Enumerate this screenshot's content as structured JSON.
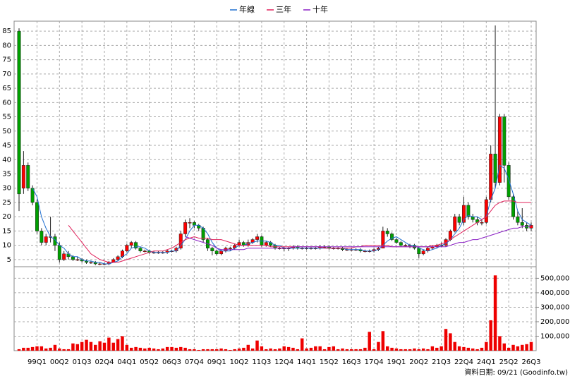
{
  "chart_data": {
    "type": "candlestick",
    "up_color": "#ff0000",
    "down_color": "#00a000",
    "grid": true,
    "categories": [
      null,
      null,
      null,
      null,
      "99Q1",
      null,
      null,
      null,
      null,
      "00Q2",
      null,
      null,
      null,
      null,
      "01Q3",
      null,
      null,
      null,
      null,
      "02Q4",
      null,
      null,
      null,
      null,
      "04Q1",
      null,
      null,
      null,
      null,
      "05Q2",
      null,
      null,
      null,
      null,
      "06Q3",
      null,
      null,
      null,
      null,
      "07Q4",
      null,
      null,
      null,
      null,
      "09Q1",
      null,
      null,
      null,
      null,
      "10Q2",
      null,
      null,
      null,
      null,
      "11Q3",
      null,
      null,
      null,
      null,
      "12Q4",
      null,
      null,
      null,
      null,
      "14Q1",
      null,
      null,
      null,
      null,
      "15Q2",
      null,
      null,
      null,
      null,
      "16Q3",
      null,
      null,
      null,
      null,
      "17Q4",
      null,
      null,
      null,
      null,
      "19Q1",
      null,
      null,
      null,
      null,
      "20Q2",
      null,
      null,
      null,
      null,
      "21Q3",
      null,
      null,
      null,
      null,
      "22Q4",
      null,
      null,
      null,
      null,
      "24Q1",
      null,
      null,
      null,
      null,
      "25Q2",
      null,
      null,
      null,
      null,
      "26Q3"
    ],
    "ylim": [
      2.5,
      88.5
    ],
    "yticks": [
      5,
      10,
      15,
      20,
      25,
      30,
      35,
      40,
      45,
      50,
      55,
      60,
      65,
      70,
      75,
      80,
      85
    ],
    "ohlc": [
      [
        85,
        86,
        22,
        28
      ],
      [
        30,
        43,
        28,
        38
      ],
      [
        38,
        39,
        29,
        30
      ],
      [
        30,
        31,
        24,
        25
      ],
      [
        25,
        26,
        14,
        15
      ],
      [
        15,
        16,
        10,
        11
      ],
      [
        11,
        14,
        10,
        13
      ],
      [
        13,
        20,
        11,
        13
      ],
      [
        13,
        14,
        8,
        10
      ],
      [
        10,
        11,
        4,
        5
      ],
      [
        5,
        8,
        4.5,
        7
      ],
      [
        7,
        8,
        5,
        6
      ],
      [
        6,
        6.5,
        4.5,
        5
      ],
      [
        5,
        6,
        4.5,
        5
      ],
      [
        5,
        5.5,
        4,
        4.5
      ],
      [
        4.5,
        5,
        3.5,
        4
      ],
      [
        4,
        4.5,
        3.5,
        4
      ],
      [
        4,
        4.5,
        3,
        3.5
      ],
      [
        3.5,
        4,
        3,
        3.5
      ],
      [
        3.5,
        4,
        3,
        3.5
      ],
      [
        3.5,
        4.5,
        3,
        4
      ],
      [
        4,
        5.5,
        4,
        5
      ],
      [
        5,
        6.5,
        4.5,
        6
      ],
      [
        6,
        8.5,
        5.5,
        8
      ],
      [
        8,
        10.5,
        7.5,
        10
      ],
      [
        10,
        11.5,
        9,
        11
      ],
      [
        11,
        11.5,
        8.5,
        9
      ],
      [
        9,
        9.5,
        7.5,
        8
      ],
      [
        8,
        8.5,
        7.5,
        8
      ],
      [
        8,
        8.5,
        7,
        7.5
      ],
      [
        7.5,
        8,
        7,
        7.5
      ],
      [
        7.5,
        8,
        7,
        7.5
      ],
      [
        7.5,
        8,
        7,
        7.5
      ],
      [
        7.5,
        8.5,
        7,
        8
      ],
      [
        8,
        8.5,
        7.5,
        8
      ],
      [
        8,
        9.5,
        7.5,
        9
      ],
      [
        9,
        15,
        8.5,
        14
      ],
      [
        14,
        19,
        13,
        18
      ],
      [
        18,
        19.5,
        16,
        18
      ],
      [
        18,
        18.5,
        16,
        17
      ],
      [
        17,
        17.5,
        15,
        16
      ],
      [
        16,
        16.5,
        11,
        12
      ],
      [
        12,
        12.5,
        8,
        9
      ],
      [
        9,
        9.5,
        6.5,
        8
      ],
      [
        8,
        8.5,
        6.5,
        7
      ],
      [
        7,
        8.5,
        6.5,
        8
      ],
      [
        8,
        9.5,
        7.5,
        9
      ],
      [
        9,
        9.5,
        8,
        9
      ],
      [
        9,
        10.5,
        8.5,
        10
      ],
      [
        10,
        12,
        9.5,
        11
      ],
      [
        11,
        11.5,
        9.5,
        10
      ],
      [
        10,
        12,
        9.5,
        11
      ],
      [
        11,
        12.5,
        10.5,
        12
      ],
      [
        12,
        14,
        11,
        13
      ],
      [
        13,
        13.5,
        9.5,
        10
      ],
      [
        10,
        11.5,
        9.5,
        11
      ],
      [
        11,
        11.5,
        9.5,
        10
      ],
      [
        10,
        10.5,
        8.5,
        9
      ],
      [
        9,
        9.5,
        8.5,
        9
      ],
      [
        9,
        9.5,
        8,
        9
      ],
      [
        9,
        9.5,
        8,
        9
      ],
      [
        9,
        10,
        8.5,
        9.5
      ],
      [
        9.5,
        10,
        8.5,
        9
      ],
      [
        9,
        9.5,
        8.5,
        9
      ],
      [
        9,
        9.5,
        8.5,
        9
      ],
      [
        9,
        9.5,
        8.5,
        9
      ],
      [
        9,
        9.5,
        8.5,
        9
      ],
      [
        9,
        10,
        8.5,
        9.5
      ],
      [
        9.5,
        10,
        9,
        9.5
      ],
      [
        9.5,
        10,
        8.5,
        9
      ],
      [
        9,
        9.5,
        8.5,
        9
      ],
      [
        9,
        9.5,
        8.5,
        9
      ],
      [
        9,
        9.5,
        8,
        8.5
      ],
      [
        8.5,
        9,
        8,
        8.5
      ],
      [
        8.5,
        9,
        8,
        8.5
      ],
      [
        8.5,
        9,
        8,
        8.5
      ],
      [
        8.5,
        9,
        7.5,
        8
      ],
      [
        8,
        8.5,
        7.5,
        8
      ],
      [
        8,
        8.5,
        7.5,
        8
      ],
      [
        8,
        9,
        7.5,
        8.5
      ],
      [
        8.5,
        9.5,
        8,
        9
      ],
      [
        9,
        16.5,
        9,
        15
      ],
      [
        15,
        16,
        13,
        14
      ],
      [
        14,
        14.5,
        11.5,
        12
      ],
      [
        12,
        12.5,
        10.5,
        11
      ],
      [
        11,
        11.5,
        9.5,
        10
      ],
      [
        10,
        10.5,
        9.5,
        10
      ],
      [
        10,
        10.5,
        9,
        10
      ],
      [
        10,
        10.5,
        8.5,
        9
      ],
      [
        9,
        9.5,
        5.5,
        7
      ],
      [
        7,
        8.5,
        6.5,
        8
      ],
      [
        8,
        9.5,
        7.5,
        9
      ],
      [
        9,
        10,
        8.5,
        9.5
      ],
      [
        9.5,
        10.5,
        9,
        10
      ],
      [
        10,
        11,
        9.5,
        10
      ],
      [
        10,
        12.5,
        9.5,
        12
      ],
      [
        12,
        15.5,
        11.5,
        15
      ],
      [
        15,
        21,
        14.5,
        20
      ],
      [
        20,
        21,
        17,
        18
      ],
      [
        18,
        27,
        17,
        24
      ],
      [
        24,
        25,
        19,
        20
      ],
      [
        20,
        21,
        18,
        19
      ],
      [
        19,
        20,
        17,
        18
      ],
      [
        18,
        19,
        17,
        18
      ],
      [
        18,
        27,
        17.5,
        26
      ],
      [
        26,
        45,
        25,
        42
      ],
      [
        42,
        87,
        30,
        32
      ],
      [
        32,
        56,
        31,
        55
      ],
      [
        55,
        56,
        32,
        38
      ],
      [
        38,
        39,
        26,
        27
      ],
      [
        27,
        28,
        19,
        20
      ],
      [
        20,
        22,
        17,
        18
      ],
      [
        18,
        23,
        16,
        17
      ],
      [
        17,
        18,
        15,
        16
      ],
      [
        16,
        18,
        15,
        17
      ]
    ],
    "series": [
      {
        "name": "年線",
        "color": "#1f6fd0",
        "values": [
          null,
          null,
          null,
          30,
          27,
          20,
          16,
          13,
          12,
          10,
          9,
          7,
          6,
          6,
          5,
          4.5,
          4.5,
          4,
          4,
          3.5,
          3.5,
          4,
          4.5,
          6,
          7,
          9,
          9.5,
          9.5,
          9,
          8,
          7.5,
          7.5,
          7.5,
          7.5,
          8,
          8,
          10,
          12,
          15,
          17,
          17,
          16,
          14,
          11,
          9,
          8,
          8,
          8,
          9,
          10,
          10,
          10.5,
          11,
          11.5,
          11.5,
          11.5,
          11,
          10,
          10,
          9,
          9,
          9,
          9,
          9,
          9,
          9,
          9,
          9,
          9,
          9,
          9,
          9,
          9,
          8.5,
          8.5,
          8.5,
          8.5,
          8,
          8,
          8,
          8.5,
          10,
          11.5,
          12.5,
          13,
          12,
          11,
          10,
          10,
          9,
          8.5,
          8,
          8.5,
          9,
          10,
          10.5,
          12,
          14,
          16,
          19,
          20.5,
          20,
          20,
          19,
          20,
          26,
          30,
          38,
          37,
          33,
          28,
          22,
          19,
          18,
          17
        ]
      },
      {
        "name": "三年",
        "color": "#e0205a",
        "values": [
          null,
          null,
          null,
          null,
          null,
          null,
          null,
          null,
          null,
          null,
          null,
          17,
          15,
          13,
          11,
          9,
          7,
          6,
          5,
          4.5,
          4,
          4,
          4,
          4.5,
          5,
          5.5,
          6,
          6.5,
          7,
          7.5,
          8,
          8,
          8,
          8.5,
          9,
          10,
          11,
          12,
          12.5,
          13,
          12.5,
          12.5,
          12.5,
          12,
          12,
          12,
          11.5,
          11,
          10.5,
          10,
          10,
          10,
          10,
          10,
          10,
          10,
          9.5,
          9.5,
          9.5,
          9.5,
          9.5,
          9.5,
          9.5,
          9.5,
          9.5,
          9.5,
          9.5,
          9.5,
          9,
          9,
          9,
          9,
          9,
          9,
          9,
          9.5,
          9.5,
          10,
          10,
          10,
          10,
          10,
          10,
          9.5,
          9.5,
          9.5,
          9.5,
          9.5,
          9.5,
          9.5,
          9.5,
          9.5,
          10,
          10,
          10.5,
          11,
          12,
          13,
          14,
          15,
          16,
          17,
          18,
          19,
          20,
          22,
          24,
          25,
          25.5,
          25.5,
          25.5,
          25,
          25,
          25,
          25
        ]
      },
      {
        "name": "十年",
        "color": "#8a1fc4",
        "values": [
          null,
          null,
          null,
          null,
          null,
          null,
          null,
          null,
          null,
          null,
          null,
          null,
          null,
          null,
          null,
          null,
          null,
          null,
          null,
          null,
          null,
          null,
          null,
          null,
          null,
          null,
          null,
          null,
          null,
          null,
          null,
          null,
          null,
          null,
          null,
          null,
          null,
          13,
          12.5,
          12,
          11.5,
          11,
          10.5,
          10,
          9,
          8.5,
          8.5,
          8.5,
          8.5,
          8.5,
          8.5,
          9,
          9,
          9,
          9,
          9,
          9,
          9,
          9,
          9,
          9,
          9.5,
          9.5,
          9.5,
          9.5,
          9.5,
          9.5,
          9.5,
          9.5,
          9.5,
          9.5,
          9.5,
          9.5,
          9.5,
          9.5,
          9.5,
          9.5,
          9.5,
          9.5,
          9.5,
          9.5,
          9.5,
          9.5,
          9.5,
          9.5,
          9.5,
          9.5,
          9.5,
          9.5,
          9.5,
          9.5,
          9.5,
          9.5,
          9.5,
          9.5,
          9.5,
          10,
          10.5,
          11,
          11,
          11.5,
          12,
          12,
          12.5,
          13,
          13.5,
          14,
          14.5,
          15,
          15.5,
          16,
          16,
          16.5,
          16.5,
          16.5
        ]
      }
    ],
    "volume": {
      "color": "#ee0000",
      "ylim": [
        0,
        580000
      ],
      "yticks": [
        {
          "value": 100000,
          "label": "100,000"
        },
        {
          "value": 200000,
          "label": "200,000"
        },
        {
          "value": 300000,
          "label": "300,000"
        },
        {
          "value": 400000,
          "label": "400,000"
        },
        {
          "value": 500000,
          "label": "500,000"
        }
      ],
      "values": [
        10000,
        20000,
        20000,
        25000,
        30000,
        30000,
        15000,
        20000,
        40000,
        15000,
        10000,
        10000,
        50000,
        45000,
        60000,
        75000,
        60000,
        40000,
        65000,
        55000,
        90000,
        55000,
        80000,
        100000,
        40000,
        20000,
        25000,
        20000,
        15000,
        20000,
        15000,
        10000,
        15000,
        25000,
        25000,
        20000,
        25000,
        20000,
        10000,
        10000,
        5000,
        10000,
        10000,
        10000,
        10000,
        15000,
        10000,
        5000,
        10000,
        15000,
        20000,
        40000,
        15000,
        70000,
        30000,
        10000,
        15000,
        10000,
        15000,
        30000,
        25000,
        20000,
        10000,
        85000,
        15000,
        20000,
        30000,
        30000,
        10000,
        25000,
        30000,
        10000,
        15000,
        10000,
        10000,
        10000,
        10000,
        20000,
        130000,
        10000,
        60000,
        135000,
        30000,
        20000,
        15000,
        10000,
        10000,
        10000,
        15000,
        10000,
        15000,
        10000,
        30000,
        20000,
        30000,
        150000,
        120000,
        60000,
        30000,
        25000,
        20000,
        15000,
        10000,
        20000,
        60000,
        210000,
        520000,
        100000,
        50000,
        20000,
        40000,
        30000,
        40000,
        45000,
        60000
      ]
    },
    "source": "資料日期: 09/21 (Goodinfo.tw)"
  }
}
